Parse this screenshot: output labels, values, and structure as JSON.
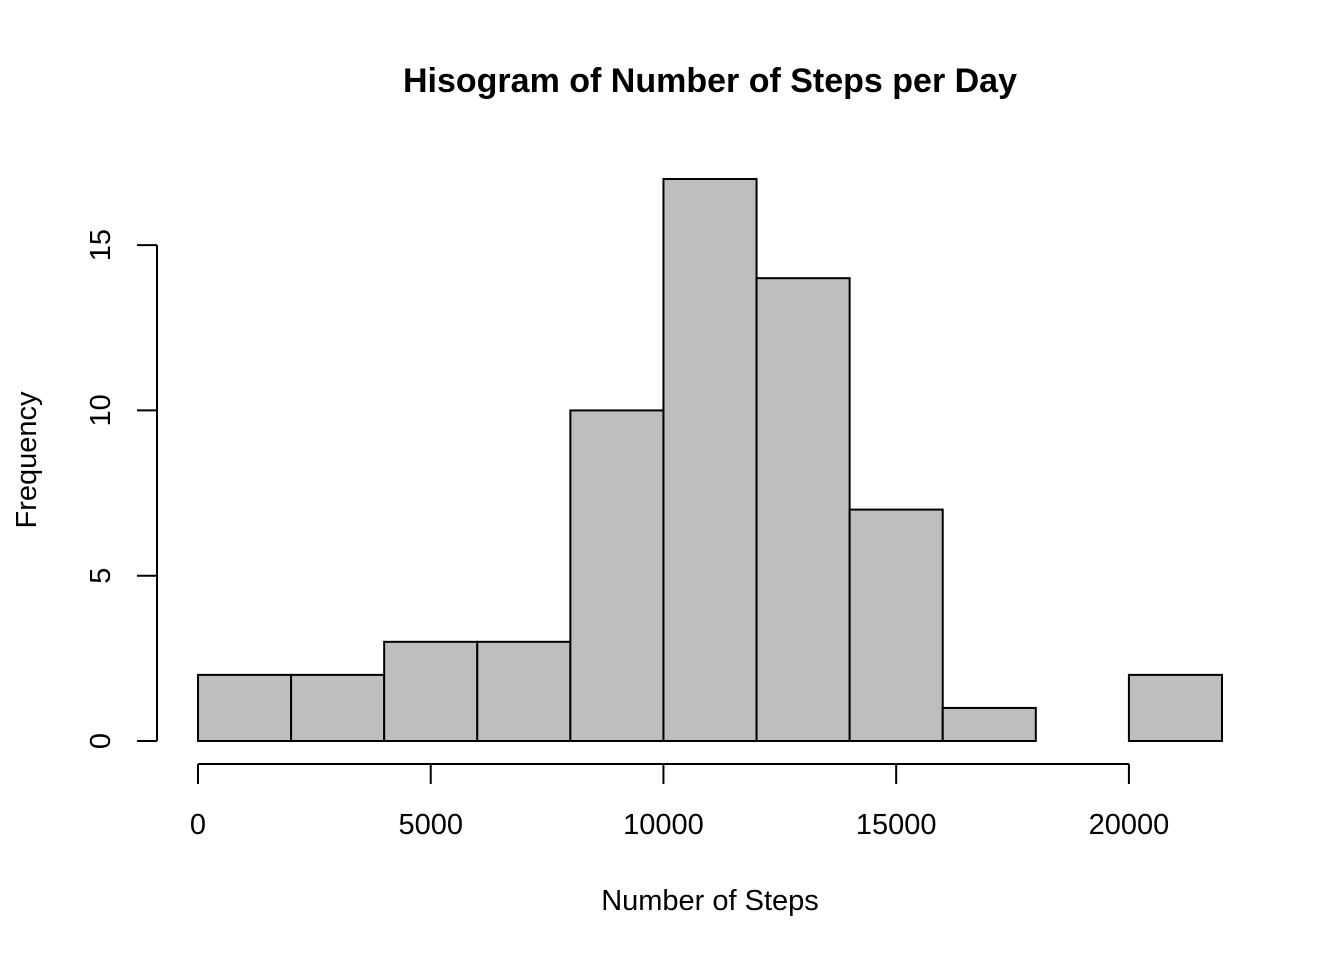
{
  "chart_data": {
    "type": "bar",
    "title": "Hisogram of Number of Steps per Day",
    "xlabel": "Number of Steps",
    "ylabel": "Frequency",
    "bins": [
      {
        "from": 0,
        "to": 2000,
        "count": 2
      },
      {
        "from": 2000,
        "to": 4000,
        "count": 2
      },
      {
        "from": 4000,
        "to": 6000,
        "count": 3
      },
      {
        "from": 6000,
        "to": 8000,
        "count": 3
      },
      {
        "from": 8000,
        "to": 10000,
        "count": 10
      },
      {
        "from": 10000,
        "to": 12000,
        "count": 17
      },
      {
        "from": 12000,
        "to": 14000,
        "count": 14
      },
      {
        "from": 14000,
        "to": 16000,
        "count": 7
      },
      {
        "from": 16000,
        "to": 18000,
        "count": 1
      },
      {
        "from": 18000,
        "to": 20000,
        "count": 0
      },
      {
        "from": 20000,
        "to": 22000,
        "count": 2
      }
    ],
    "xlim": [
      0,
      22000
    ],
    "ylim": [
      0,
      17
    ],
    "x_ticks": [
      0,
      5000,
      10000,
      15000,
      20000
    ],
    "y_ticks": [
      0,
      5,
      10,
      15
    ],
    "grid": false,
    "legend": "none",
    "bar_color": "#bebebe",
    "edge_color": "#000000"
  }
}
